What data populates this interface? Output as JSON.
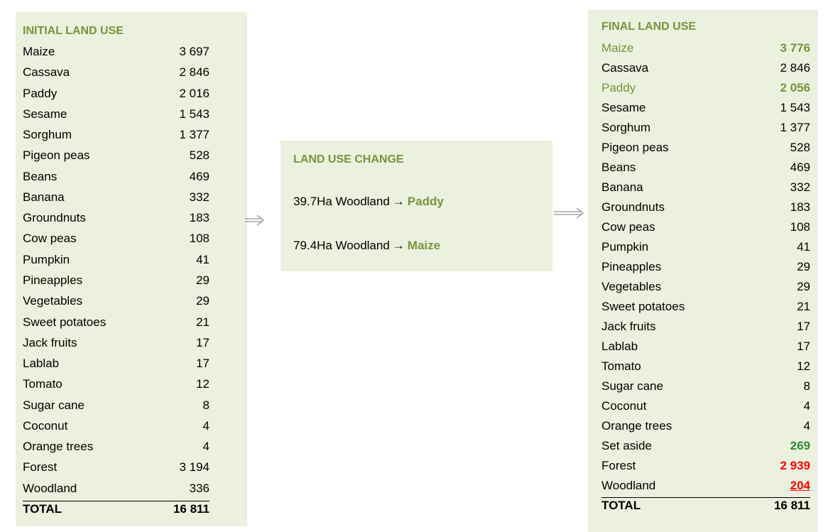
{
  "initial": {
    "title": "INITIAL LAND USE",
    "rows": [
      {
        "label": "Maize",
        "value": "3 697"
      },
      {
        "label": "Cassava",
        "value": "2 846"
      },
      {
        "label": "Paddy",
        "value": "2 016"
      },
      {
        "label": "Sesame",
        "value": "1 543"
      },
      {
        "label": "Sorghum",
        "value": "1 377"
      },
      {
        "label": "Pigeon peas",
        "value": "528"
      },
      {
        "label": "Beans",
        "value": "469"
      },
      {
        "label": "Banana",
        "value": "332"
      },
      {
        "label": "Groundnuts",
        "value": "183"
      },
      {
        "label": "Cow peas",
        "value": "108"
      },
      {
        "label": "Pumpkin",
        "value": "41"
      },
      {
        "label": "Pineapples",
        "value": "29"
      },
      {
        "label": "Vegetables",
        "value": "29"
      },
      {
        "label": "Sweet potatoes",
        "value": "21"
      },
      {
        "label": "Jack fruits",
        "value": "17"
      },
      {
        "label": "Lablab",
        "value": "17"
      },
      {
        "label": "Tomato",
        "value": "12"
      },
      {
        "label": "Sugar cane",
        "value": "8"
      },
      {
        "label": "Coconut",
        "value": "4"
      },
      {
        "label": "Orange trees",
        "value": "4"
      },
      {
        "label": "Forest",
        "value": "3 194"
      },
      {
        "label": "Woodland",
        "value": "336"
      }
    ],
    "total": {
      "label": "TOTAL",
      "value": "16 811"
    }
  },
  "change": {
    "title": "LAND USE CHANGE",
    "items": [
      {
        "source": "39.7Ha Woodland",
        "arrow": "→",
        "target": "Paddy"
      },
      {
        "source": "79.4Ha Woodland",
        "arrow": "→",
        "target": "Maize"
      }
    ]
  },
  "final": {
    "title": "FINAL LAND USE",
    "rows": [
      {
        "label": "Maize",
        "value": "3 776",
        "color": "#77933c",
        "bold": true
      },
      {
        "label": "Cassava",
        "value": "2 846"
      },
      {
        "label": "Paddy",
        "value": "2 056",
        "color": "#77933c",
        "bold": true
      },
      {
        "label": "Sesame",
        "value": "1 543"
      },
      {
        "label": "Sorghum",
        "value": "1 377"
      },
      {
        "label": "Pigeon peas",
        "value": "528"
      },
      {
        "label": "Beans",
        "value": "469"
      },
      {
        "label": "Banana",
        "value": "332"
      },
      {
        "label": "Groundnuts",
        "value": "183"
      },
      {
        "label": "Cow peas",
        "value": "108"
      },
      {
        "label": "Pumpkin",
        "value": "41"
      },
      {
        "label": "Pineapples",
        "value": "29"
      },
      {
        "label": "Vegetables",
        "value": "29"
      },
      {
        "label": "Sweet potatoes",
        "value": "21"
      },
      {
        "label": "Jack fruits",
        "value": "17"
      },
      {
        "label": "Lablab",
        "value": "17"
      },
      {
        "label": "Tomato",
        "value": "12"
      },
      {
        "label": "Sugar cane",
        "value": "8"
      },
      {
        "label": "Coconut",
        "value": "4"
      },
      {
        "label": "Orange trees",
        "value": "4"
      },
      {
        "label": "Set aside",
        "value": "269",
        "value_color": "#2e8b2e",
        "bold": true
      },
      {
        "label": "Forest",
        "value": "2 939",
        "value_color": "#ff0000",
        "bold": true
      },
      {
        "label": "Woodland",
        "value": "204",
        "value_color": "#ff0000",
        "bold": true,
        "underline": true
      }
    ],
    "total": {
      "label": "TOTAL",
      "value": "16 811"
    }
  }
}
